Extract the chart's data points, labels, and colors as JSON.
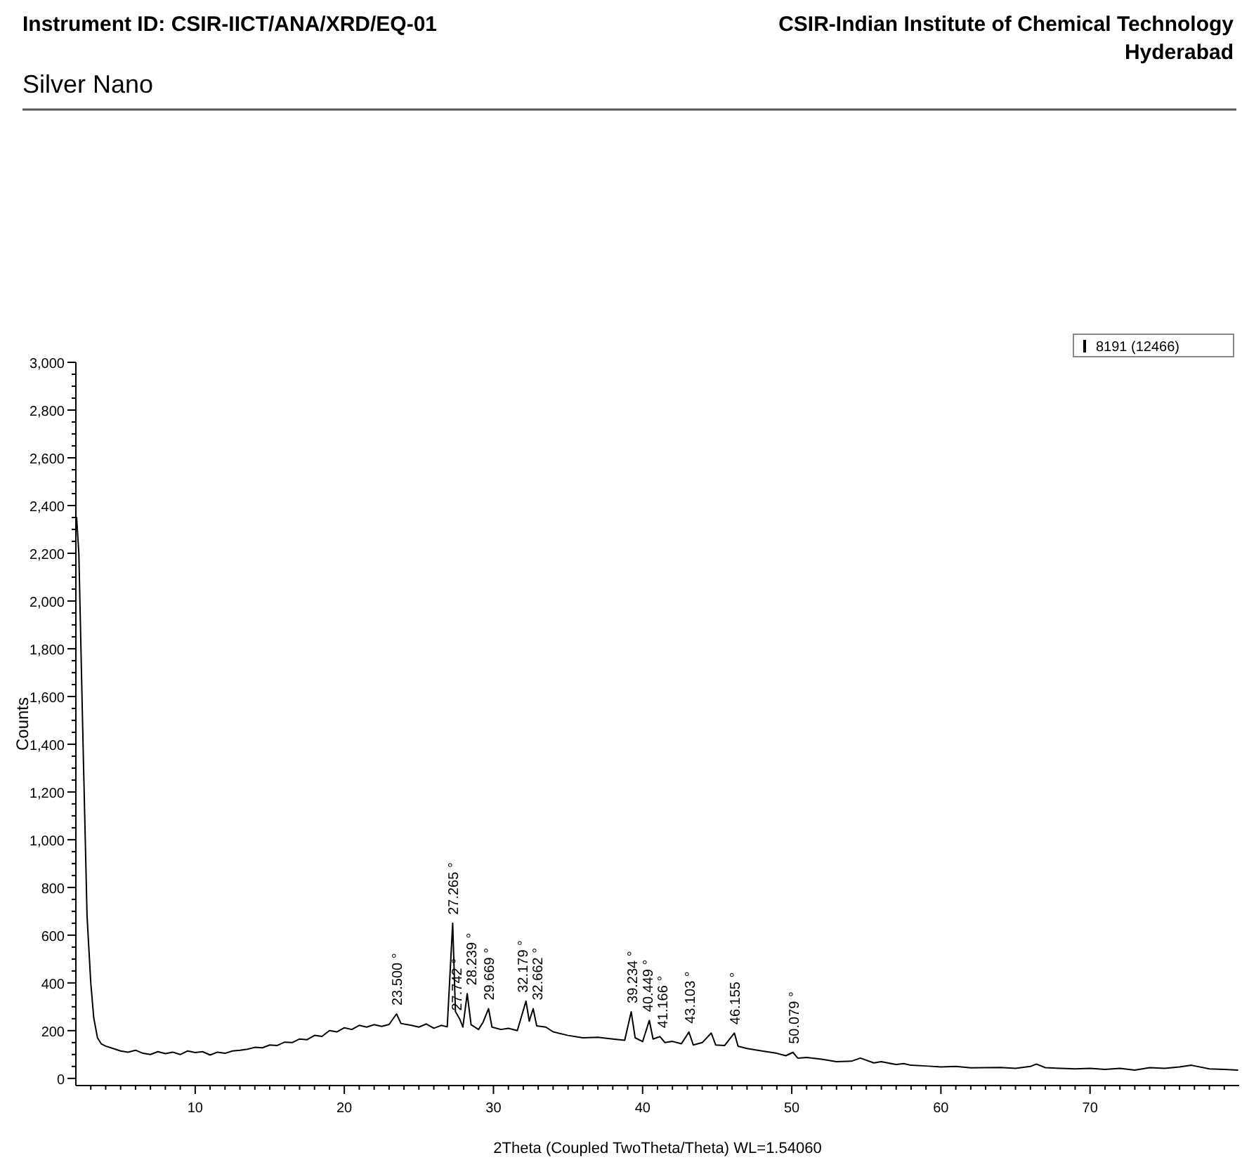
{
  "chart_data": {
    "type": "line",
    "title": "Silver Nano",
    "xlabel": "2Theta (Coupled TwoTheta/Theta) WL=1.54060",
    "ylabel": "Counts",
    "legend": "top right",
    "grid": false,
    "marker": "none",
    "line_style": "solid",
    "xlim": [
      2,
      80
    ],
    "ylim": [
      -30,
      3000
    ],
    "xticks": [
      {
        "value": 3,
        "label": null
      },
      {
        "value": 4,
        "label": null
      },
      {
        "value": 5,
        "label": null
      },
      {
        "value": 6,
        "label": null
      },
      {
        "value": 7,
        "label": null
      },
      {
        "value": 8,
        "label": null
      },
      {
        "value": 9,
        "label": null
      },
      10,
      {
        "value": 11,
        "label": null
      },
      {
        "value": 12,
        "label": null
      },
      {
        "value": 13,
        "label": null
      },
      {
        "value": 14,
        "label": null
      },
      {
        "value": 15,
        "label": null
      },
      {
        "value": 16,
        "label": null
      },
      {
        "value": 17,
        "label": null
      },
      {
        "value": 18,
        "label": null
      },
      {
        "value": 19,
        "label": null
      },
      20,
      {
        "value": 21,
        "label": null
      },
      {
        "value": 22,
        "label": null
      },
      {
        "value": 23,
        "label": null
      },
      {
        "value": 24,
        "label": null
      },
      {
        "value": 25,
        "label": null
      },
      {
        "value": 26,
        "label": null
      },
      {
        "value": 27,
        "label": null
      },
      {
        "value": 28,
        "label": null
      },
      {
        "value": 29,
        "label": null
      },
      30,
      {
        "value": 31,
        "label": null
      },
      {
        "value": 32,
        "label": null
      },
      {
        "value": 33,
        "label": null
      },
      {
        "value": 34,
        "label": null
      },
      {
        "value": 35,
        "label": null
      },
      {
        "value": 36,
        "label": null
      },
      {
        "value": 37,
        "label": null
      },
      {
        "value": 38,
        "label": null
      },
      {
        "value": 39,
        "label": null
      },
      40,
      {
        "value": 41,
        "label": null
      },
      {
        "value": 42,
        "label": null
      },
      {
        "value": 43,
        "label": null
      },
      {
        "value": 44,
        "label": null
      },
      {
        "value": 45,
        "label": null
      },
      {
        "value": 46,
        "label": null
      },
      {
        "value": 47,
        "label": null
      },
      {
        "value": 48,
        "label": null
      },
      {
        "value": 49,
        "label": null
      },
      50,
      {
        "value": 51,
        "label": null
      },
      {
        "value": 52,
        "label": null
      },
      {
        "value": 53,
        "label": null
      },
      {
        "value": 54,
        "label": null
      },
      {
        "value": 55,
        "label": null
      },
      {
        "value": 56,
        "label": null
      },
      {
        "value": 57,
        "label": null
      },
      {
        "value": 58,
        "label": null
      },
      {
        "value": 59,
        "label": null
      },
      60,
      {
        "value": 61,
        "label": null
      },
      {
        "value": 62,
        "label": null
      },
      {
        "value": 63,
        "label": null
      },
      {
        "value": 64,
        "label": null
      },
      {
        "value": 65,
        "label": null
      },
      {
        "value": 66,
        "label": null
      },
      {
        "value": 67,
        "label": null
      },
      {
        "value": 68,
        "label": null
      },
      {
        "value": 69,
        "label": null
      },
      70,
      {
        "value": 71,
        "label": null
      },
      {
        "value": 72,
        "label": null
      },
      {
        "value": 73,
        "label": null
      },
      {
        "value": 74,
        "label": null
      },
      {
        "value": 75,
        "label": null
      },
      {
        "value": 76,
        "label": null
      },
      {
        "value": 77,
        "label": null
      },
      {
        "value": 78,
        "label": null
      },
      {
        "value": 79,
        "label": null
      }
    ],
    "yticks": [
      0,
      {
        "value": 50,
        "label": null
      },
      {
        "value": 100,
        "label": null
      },
      {
        "value": 150,
        "label": null
      },
      200,
      {
        "value": 250,
        "label": null
      },
      {
        "value": 300,
        "label": null
      },
      {
        "value": 350,
        "label": null
      },
      400,
      {
        "value": 450,
        "label": null
      },
      {
        "value": 500,
        "label": null
      },
      {
        "value": 550,
        "label": null
      },
      600,
      {
        "value": 650,
        "label": null
      },
      {
        "value": 700,
        "label": null
      },
      {
        "value": 750,
        "label": null
      },
      800,
      {
        "value": 850,
        "label": null
      },
      {
        "value": 900,
        "label": null
      },
      {
        "value": 950,
        "label": null
      },
      {
        "value": 1000,
        "label": "1,000"
      },
      {
        "value": 1050,
        "label": null
      },
      {
        "value": 1100,
        "label": null
      },
      {
        "value": 1150,
        "label": null
      },
      {
        "value": 1200,
        "label": "1,200"
      },
      {
        "value": 1250,
        "label": null
      },
      {
        "value": 1300,
        "label": null
      },
      {
        "value": 1350,
        "label": null
      },
      {
        "value": 1400,
        "label": "1,400"
      },
      {
        "value": 1450,
        "label": null
      },
      {
        "value": 1500,
        "label": null
      },
      {
        "value": 1550,
        "label": null
      },
      {
        "value": 1600,
        "label": "1,600"
      },
      {
        "value": 1650,
        "label": null
      },
      {
        "value": 1700,
        "label": null
      },
      {
        "value": 1750,
        "label": null
      },
      {
        "value": 1800,
        "label": "1,800"
      },
      {
        "value": 1850,
        "label": null
      },
      {
        "value": 1900,
        "label": null
      },
      {
        "value": 1950,
        "label": null
      },
      {
        "value": 2000,
        "label": "2,000"
      },
      {
        "value": 2050,
        "label": null
      },
      {
        "value": 2100,
        "label": null
      },
      {
        "value": 2150,
        "label": null
      },
      {
        "value": 2200,
        "label": "2,200"
      },
      {
        "value": 2250,
        "label": null
      },
      {
        "value": 2300,
        "label": null
      },
      {
        "value": 2350,
        "label": null
      },
      {
        "value": 2400,
        "label": "2,400"
      },
      {
        "value": 2450,
        "label": null
      },
      {
        "value": 2500,
        "label": null
      },
      {
        "value": 2550,
        "label": null
      },
      {
        "value": 2600,
        "label": "2,600"
      },
      {
        "value": 2650,
        "label": null
      },
      {
        "value": 2700,
        "label": null
      },
      {
        "value": 2750,
        "label": null
      },
      {
        "value": 2800,
        "label": "2,800"
      },
      {
        "value": 2850,
        "label": null
      },
      {
        "value": 2900,
        "label": null
      },
      {
        "value": 2950,
        "label": null
      },
      {
        "value": 3000,
        "label": "3,000"
      }
    ],
    "series": [
      {
        "name": "8191 (12466)",
        "color": "#000000",
        "x": [
          2.05,
          2.2,
          2.5,
          2.75,
          3.0,
          3.2,
          3.45,
          3.7,
          4,
          4.5,
          5,
          5.5,
          6,
          6.5,
          7,
          7.5,
          8,
          8.5,
          9,
          9.5,
          10,
          10.5,
          11,
          11.5,
          12,
          12.5,
          13,
          13.5,
          14,
          14.5,
          15,
          15.5,
          16,
          16.5,
          17,
          17.5,
          18,
          18.5,
          19,
          19.5,
          20,
          20.5,
          21,
          21.5,
          22,
          22.5,
          23,
          23.5,
          23.8,
          24.5,
          25,
          25.5,
          26,
          26.5,
          26.9,
          27.265,
          27.45,
          27.742,
          27.95,
          28.239,
          28.5,
          29,
          29.3,
          29.669,
          29.9,
          30.5,
          31,
          31.6,
          32.179,
          32.4,
          32.662,
          32.9,
          33.5,
          34,
          35,
          36,
          37,
          38,
          38.8,
          39.234,
          39.5,
          40,
          40.449,
          40.7,
          41.166,
          41.5,
          42,
          42.6,
          43.103,
          43.4,
          44,
          44.6,
          44.9,
          45.5,
          46.155,
          46.4,
          47,
          48,
          49,
          49.6,
          50.079,
          50.4,
          51,
          52,
          53,
          54,
          54.6,
          55.5,
          56,
          57,
          57.5,
          58,
          59,
          60,
          61,
          62,
          63,
          64,
          65,
          66,
          66.4,
          67,
          68,
          69,
          70,
          71,
          72,
          73,
          74,
          75,
          76,
          76.8,
          78,
          79,
          79.9
        ],
        "values": [
          2350,
          2200,
          1350,
          680,
          400,
          253,
          170,
          145,
          135,
          125,
          115,
          110,
          118,
          105,
          100,
          112,
          104,
          110,
          100,
          115,
          108,
          112,
          98,
          110,
          105,
          115,
          118,
          122,
          130,
          128,
          140,
          138,
          152,
          150,
          165,
          162,
          180,
          176,
          200,
          195,
          212,
          205,
          222,
          215,
          225,
          218,
          226,
          270,
          230,
          222,
          215,
          228,
          210,
          222,
          216,
          650,
          280,
          248,
          215,
          355,
          225,
          205,
          235,
          292,
          215,
          205,
          210,
          200,
          324,
          240,
          292,
          220,
          215,
          195,
          180,
          170,
          172,
          165,
          160,
          279,
          170,
          154,
          243,
          165,
          175,
          150,
          155,
          145,
          194,
          140,
          150,
          190,
          140,
          138,
          190,
          135,
          125,
          115,
          105,
          95,
          109,
          85,
          88,
          80,
          70,
          72,
          85,
          65,
          70,
          58,
          62,
          55,
          52,
          48,
          50,
          44,
          45,
          46,
          42,
          50,
          60,
          45,
          42,
          40,
          42,
          38,
          42,
          35,
          45,
          42,
          48,
          55,
          40,
          38,
          35
        ]
      }
    ],
    "annotations": [
      "Instrument ID: CSIR-IICT/ANA/XRD/EQ-01",
      "CSIR-Indian Institute of Chemical Technology",
      "Hyderabad",
      {
        "text": "23.500 °",
        "x": 23.5,
        "y": 270
      },
      {
        "text": "27.265 °",
        "x": 27.265,
        "y": 650
      },
      {
        "text": "27.742 °",
        "x": 27.742,
        "y": 248
      },
      {
        "text": "28.239 °",
        "x": 28.239,
        "y": 355
      },
      {
        "text": "29.669 °",
        "x": 29.669,
        "y": 292
      },
      {
        "text": "32.179 °",
        "x": 32.179,
        "y": 324
      },
      {
        "text": "32.662 °",
        "x": 32.662,
        "y": 292
      },
      {
        "text": "39.234 °",
        "x": 39.234,
        "y": 279
      },
      {
        "text": "40.449 °",
        "x": 40.449,
        "y": 243
      },
      {
        "text": "41.166 °",
        "x": 41.166,
        "y": 175
      },
      {
        "text": "43.103 °",
        "x": 43.103,
        "y": 194
      },
      {
        "text": "46.155 °",
        "x": 46.155,
        "y": 190
      },
      {
        "text": "50.079 °",
        "x": 50.079,
        "y": 109
      }
    ]
  }
}
